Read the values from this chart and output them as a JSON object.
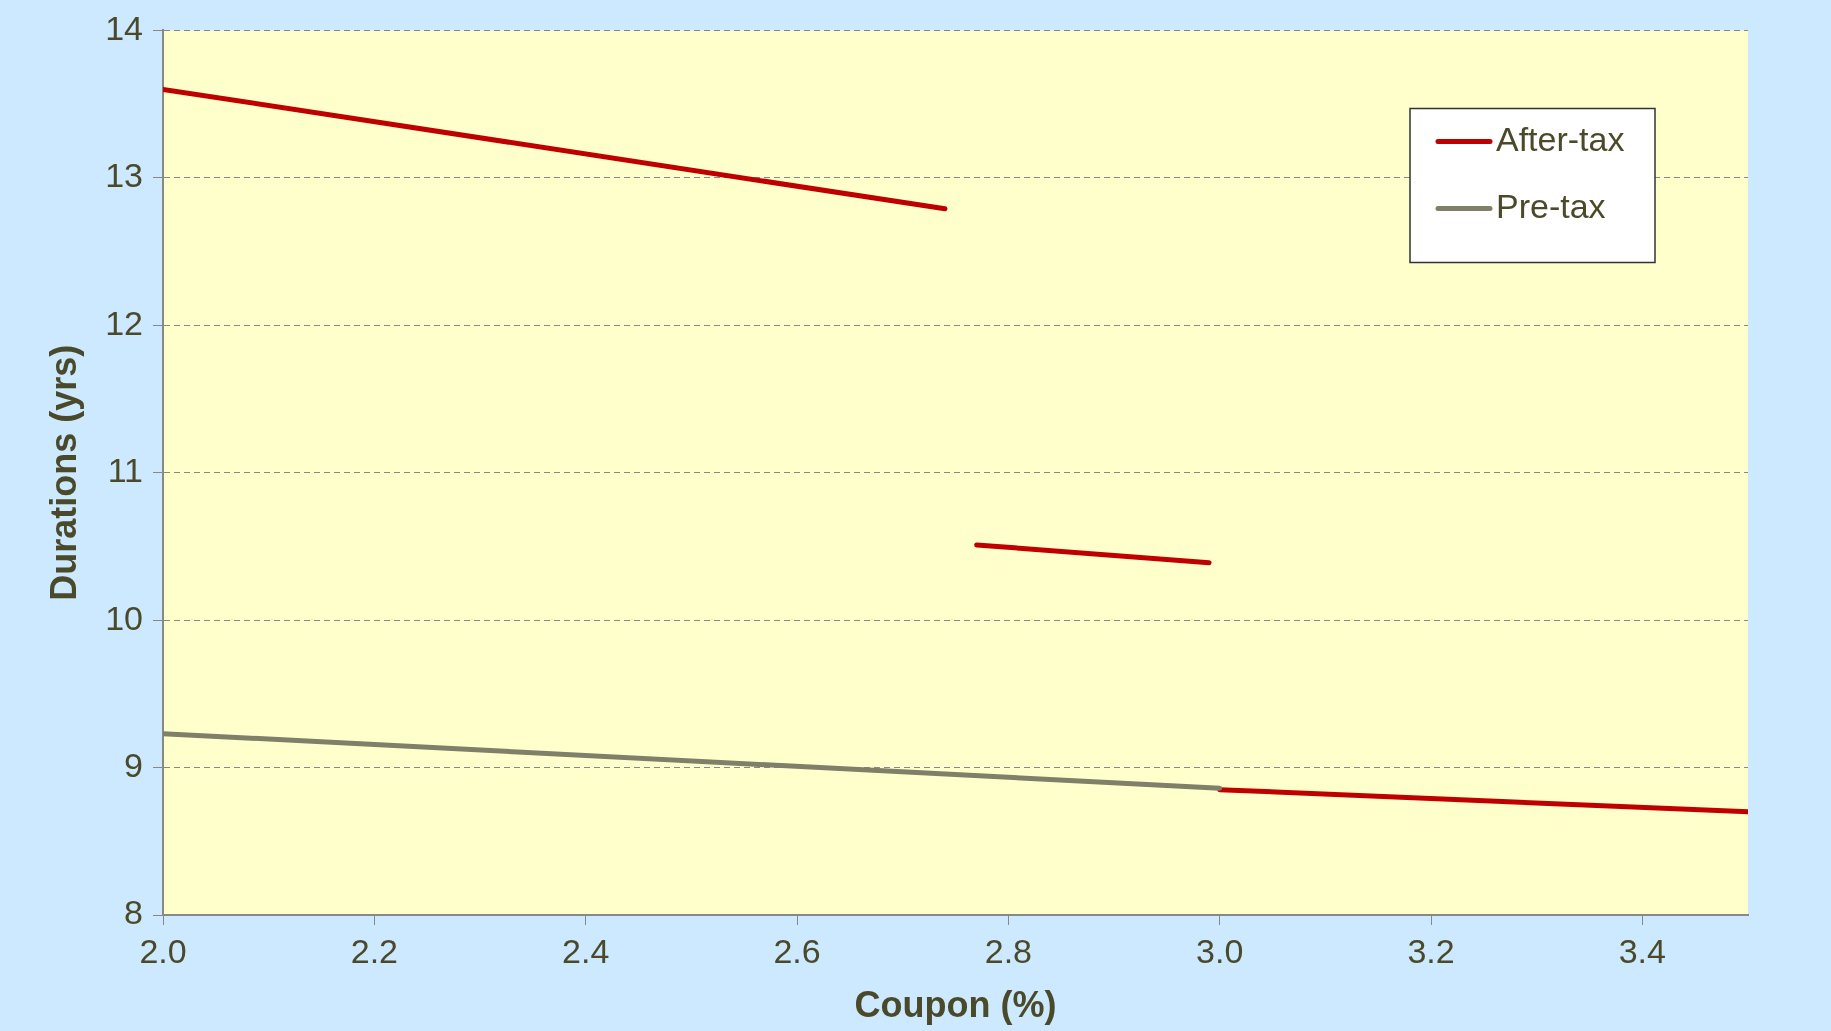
{
  "chart_data": {
    "type": "line",
    "xlabel": "Coupon (%)",
    "ylabel": "Durations (yrs)",
    "xlim": [
      2,
      3.5
    ],
    "xticks": [
      {
        "value": 2,
        "label": "2.0"
      },
      2.2,
      2.4,
      2.6,
      2.8,
      {
        "value": 3,
        "label": "3.0"
      },
      3.2,
      3.4
    ],
    "ylim": [
      8,
      14
    ],
    "yticks": [
      8,
      9,
      10,
      11,
      12,
      13,
      14
    ],
    "grid": "y",
    "legend": "top right",
    "marker": "none",
    "line_style": "solid",
    "series": [
      {
        "name": "After-tax",
        "color": "#c00000",
        "x": [
          2.0,
          2.74,
          2.755,
          2.77,
          2.99,
          2.995,
          3.0,
          3.5
        ],
        "values": [
          13.6,
          12.79,
          null,
          10.51,
          10.39,
          null,
          8.85,
          8.7
        ]
      },
      {
        "name": "Pre-tax",
        "color": "#7f7f6a",
        "x": [
          2.0,
          3.0
        ],
        "values": [
          9.23,
          8.86
        ]
      }
    ]
  }
}
